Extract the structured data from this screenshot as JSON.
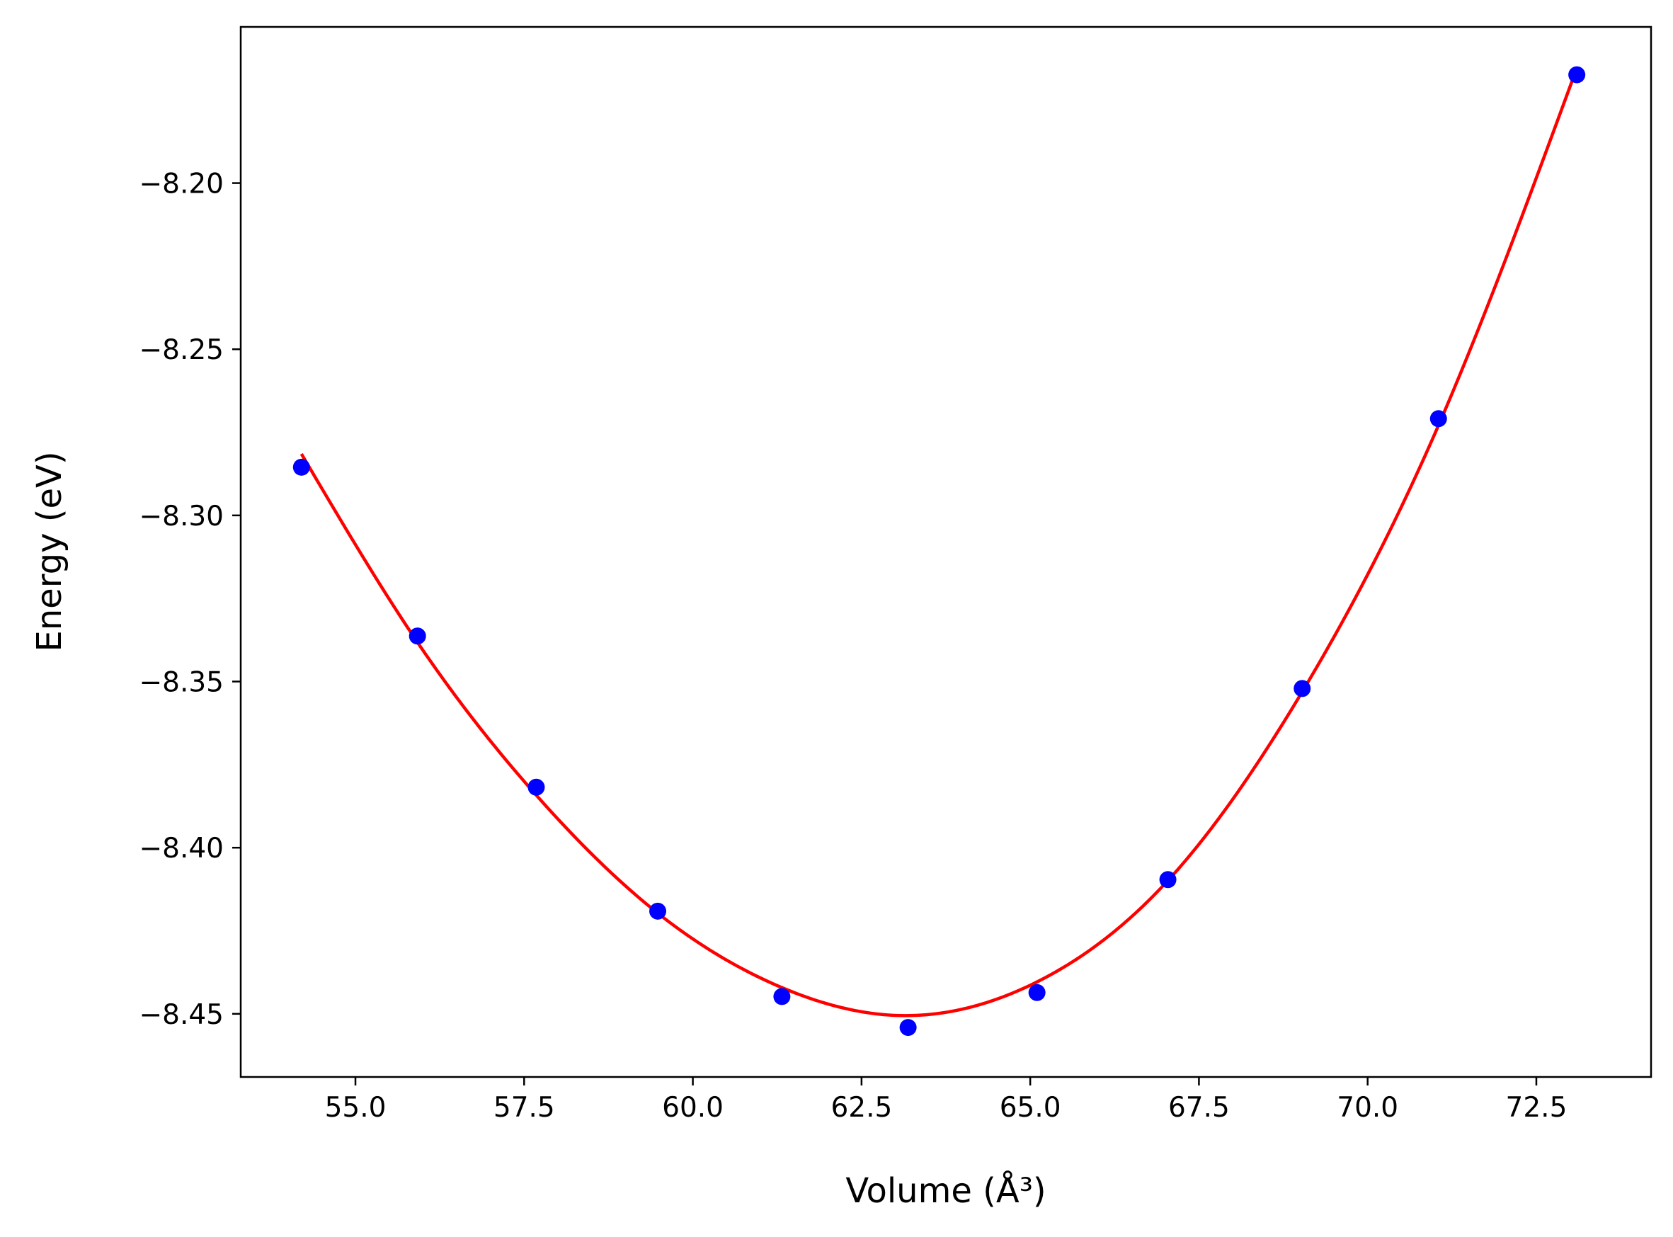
{
  "chart_data": {
    "type": "scatter",
    "xlabel": "Volume (Å³)",
    "ylabel": "Energy (eV)",
    "xlim": [
      53.3,
      74.2
    ],
    "ylim": [
      -8.469,
      -8.153
    ],
    "grid": false,
    "x_ticks": [
      55.0,
      57.5,
      60.0,
      62.5,
      65.0,
      67.5,
      70.0,
      72.5
    ],
    "x_tick_labels": [
      "55.0",
      "57.5",
      "60.0",
      "62.5",
      "65.0",
      "67.5",
      "70.0",
      "72.5"
    ],
    "y_ticks": [
      -8.2,
      -8.25,
      -8.3,
      -8.35,
      -8.4,
      -8.45
    ],
    "y_tick_labels": [
      "−8.20",
      "−8.25",
      "−8.30",
      "−8.35",
      "−8.40",
      "−8.45"
    ],
    "series": [
      {
        "kind": "markers",
        "color": "#0000ff",
        "x": [
          54.2,
          55.92,
          57.68,
          59.48,
          61.32,
          63.19,
          65.1,
          67.04,
          69.03,
          71.05,
          73.1
        ],
        "y": [
          -8.2855,
          -8.3363,
          -8.3818,
          -8.4191,
          -8.4448,
          -8.4541,
          -8.4436,
          -8.4096,
          -8.3521,
          -8.2709,
          -8.1674
        ]
      },
      {
        "kind": "fit-curve",
        "color": "#ff0000",
        "x_range": [
          54.2,
          73.1
        ],
        "fit_points": [
          [
            54.2,
            -8.2815
          ],
          [
            55.92,
            -8.3382
          ],
          [
            57.68,
            -8.3842
          ],
          [
            59.48,
            -8.4197
          ],
          [
            61.32,
            -8.4421
          ],
          [
            63.05,
            -8.4505
          ],
          [
            65.1,
            -8.4404
          ],
          [
            67.04,
            -8.4099
          ],
          [
            69.03,
            -8.3531
          ],
          [
            71.05,
            -8.2729
          ],
          [
            73.1,
            -8.1654
          ]
        ]
      }
    ]
  }
}
